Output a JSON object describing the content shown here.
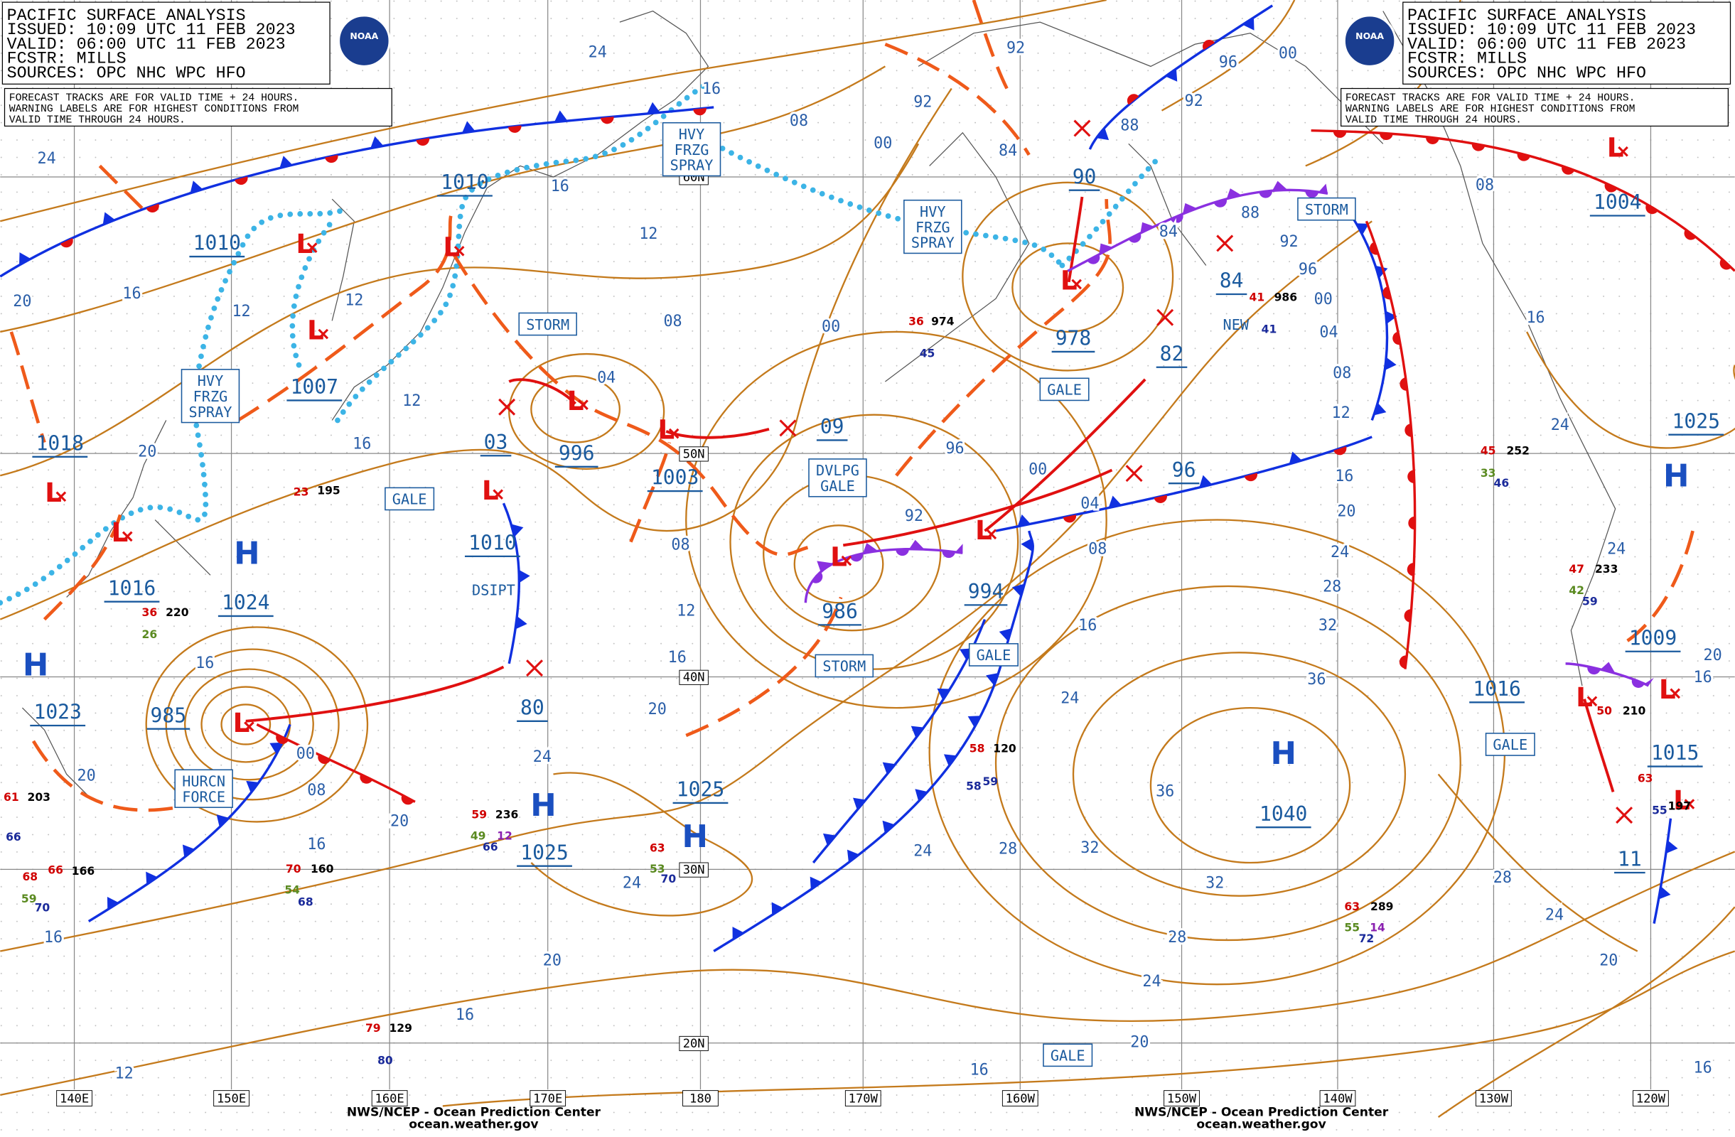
{
  "header": {
    "lines": [
      "PACIFIC SURFACE ANALYSIS",
      "ISSUED: 10:09 UTC 11 FEB 2023",
      "VALID: 06:00 UTC 11 FEB 2023",
      "FCSTR: MILLS",
      "SOURCES: OPC NHC WPC HFO"
    ],
    "logo": "NOAA"
  },
  "note": {
    "lines": [
      "FORECAST TRACKS ARE FOR VALID TIME + 24 HOURS.",
      "WARNING LABELS ARE FOR HIGHEST CONDITIONS FROM",
      "VALID TIME THROUGH 24 HOURS."
    ]
  },
  "footer": {
    "lines": [
      "NWS/NCEP - Ocean Prediction Center",
      "ocean.weather.gov"
    ]
  },
  "longitudes": [
    "140E",
    "150E",
    "160E",
    "170E",
    "180",
    "170W",
    "160W",
    "150W",
    "140W",
    "130W",
    "120W"
  ],
  "latitudes": [
    "60N",
    "50N",
    "40N",
    "30N",
    "20N"
  ],
  "high_symbol": "H",
  "low_symbol": "L",
  "pressures": [
    "1010",
    "1010",
    "1007",
    "1018",
    "1016",
    "1024",
    "1023",
    "985",
    "03",
    "996",
    "1003",
    "09",
    "1010",
    "80",
    "986",
    "994",
    "90",
    "978",
    "84",
    "82",
    "96",
    "1004",
    "1025",
    "1009",
    "1016",
    "1015",
    "11",
    "1040",
    "1025",
    "1025"
  ],
  "warnings": [
    {
      "lines": [
        "HVY",
        "FRZG",
        "SPRAY"
      ]
    },
    {
      "lines": [
        "HVY",
        "FRZG",
        "SPRAY"
      ]
    },
    {
      "lines": [
        "HVY",
        "FRZG",
        "SPRAY"
      ]
    },
    {
      "lines": [
        "STORM"
      ]
    },
    {
      "lines": [
        "STORM"
      ]
    },
    {
      "lines": [
        "STORM"
      ]
    },
    {
      "lines": [
        "GALE"
      ]
    },
    {
      "lines": [
        "GALE"
      ]
    },
    {
      "lines": [
        "GALE"
      ]
    },
    {
      "lines": [
        "GALE"
      ]
    },
    {
      "lines": [
        "GALE"
      ]
    },
    {
      "lines": [
        "DVLPG",
        "GALE"
      ]
    },
    {
      "lines": [
        "HURCN",
        "FORCE"
      ]
    }
  ],
  "remarks": [
    "DSIPT",
    "NEW"
  ],
  "isobar_labels": [
    "24",
    "24",
    "16",
    "16",
    "08",
    "00",
    "92",
    "92",
    "96",
    "92",
    "00",
    "88",
    "84",
    "84",
    "88",
    "92",
    "96",
    "00",
    "04",
    "08",
    "12",
    "16",
    "20",
    "24",
    "28",
    "32",
    "36",
    "12",
    "12",
    "16",
    "12",
    "20",
    "08",
    "00",
    "04",
    "12",
    "16",
    "20",
    "96",
    "92",
    "00",
    "04",
    "08",
    "16",
    "24",
    "08",
    "12",
    "16",
    "20",
    "16",
    "24",
    "00",
    "08",
    "20",
    "20",
    "16",
    "24",
    "20",
    "24",
    "28",
    "32",
    "36",
    "32",
    "28",
    "24",
    "20",
    "16",
    "16",
    "12",
    "16",
    "28",
    "24",
    "20",
    "16",
    "16",
    "24",
    "24",
    "16",
    "20",
    "08"
  ],
  "stations": [
    {
      "text": "23",
      "color": "#d00000"
    },
    {
      "text": "195",
      "color": "#000000"
    },
    {
      "text": "36",
      "color": "#d00000"
    },
    {
      "text": "220",
      "color": "#000000"
    },
    {
      "text": "26",
      "color": "#5a8a20"
    },
    {
      "text": "59",
      "color": "#d00000"
    },
    {
      "text": "236",
      "color": "#000000"
    },
    {
      "text": "49",
      "color": "#5a8a20"
    },
    {
      "text": "12",
      "color": "#8a20b0"
    },
    {
      "text": "66",
      "color": "#1a2a9a"
    },
    {
      "text": "63",
      "color": "#d00000"
    },
    {
      "text": "70",
      "color": "#1a2a9a"
    },
    {
      "text": "53",
      "color": "#5a8a20"
    },
    {
      "text": "70",
      "color": "#d00000"
    },
    {
      "text": "160",
      "color": "#000000"
    },
    {
      "text": "54",
      "color": "#5a8a20"
    },
    {
      "text": "68",
      "color": "#1a2a9a"
    },
    {
      "text": "79",
      "color": "#d00000"
    },
    {
      "text": "129",
      "color": "#000000"
    },
    {
      "text": "80",
      "color": "#1a2a9a"
    },
    {
      "text": "63",
      "color": "#d00000"
    },
    {
      "text": "289",
      "color": "#000000"
    },
    {
      "text": "55",
      "color": "#5a8a20"
    },
    {
      "text": "14",
      "color": "#8a20b0"
    },
    {
      "text": "72",
      "color": "#1a2a9a"
    },
    {
      "text": "45",
      "color": "#d00000"
    },
    {
      "text": "252",
      "color": "#000000"
    },
    {
      "text": "33",
      "color": "#5a8a20"
    },
    {
      "text": "46",
      "color": "#1a2a9a"
    },
    {
      "text": "41",
      "color": "#d00000"
    },
    {
      "text": "986",
      "color": "#000000"
    },
    {
      "text": "41",
      "color": "#1a2a9a"
    },
    {
      "text": "36",
      "color": "#d00000"
    },
    {
      "text": "974",
      "color": "#000000"
    },
    {
      "text": "45",
      "color": "#1a2a9a"
    },
    {
      "text": "61",
      "color": "#d00000"
    },
    {
      "text": "203",
      "color": "#000000"
    },
    {
      "text": "66",
      "color": "#1a2a9a"
    },
    {
      "text": "66",
      "color": "#d00000"
    },
    {
      "text": "166",
      "color": "#000000"
    },
    {
      "text": "68",
      "color": "#d00000"
    },
    {
      "text": "70",
      "color": "#1a2a9a"
    },
    {
      "text": "59",
      "color": "#5a8a20"
    },
    {
      "text": "58",
      "color": "#d00000"
    },
    {
      "text": "120",
      "color": "#000000"
    },
    {
      "text": "58",
      "color": "#1a2a9a"
    },
    {
      "text": "59",
      "color": "#1a2a9a"
    },
    {
      "text": "47",
      "color": "#d00000"
    },
    {
      "text": "233",
      "color": "#000000"
    },
    {
      "text": "42",
      "color": "#5a8a20"
    },
    {
      "text": "59",
      "color": "#1a2a9a"
    },
    {
      "text": "50",
      "color": "#d00000"
    },
    {
      "text": "210",
      "color": "#000000"
    },
    {
      "text": "63",
      "color": "#d00000"
    },
    {
      "text": "197",
      "color": "#000000"
    },
    {
      "text": "55",
      "color": "#1a2a9a"
    }
  ]
}
